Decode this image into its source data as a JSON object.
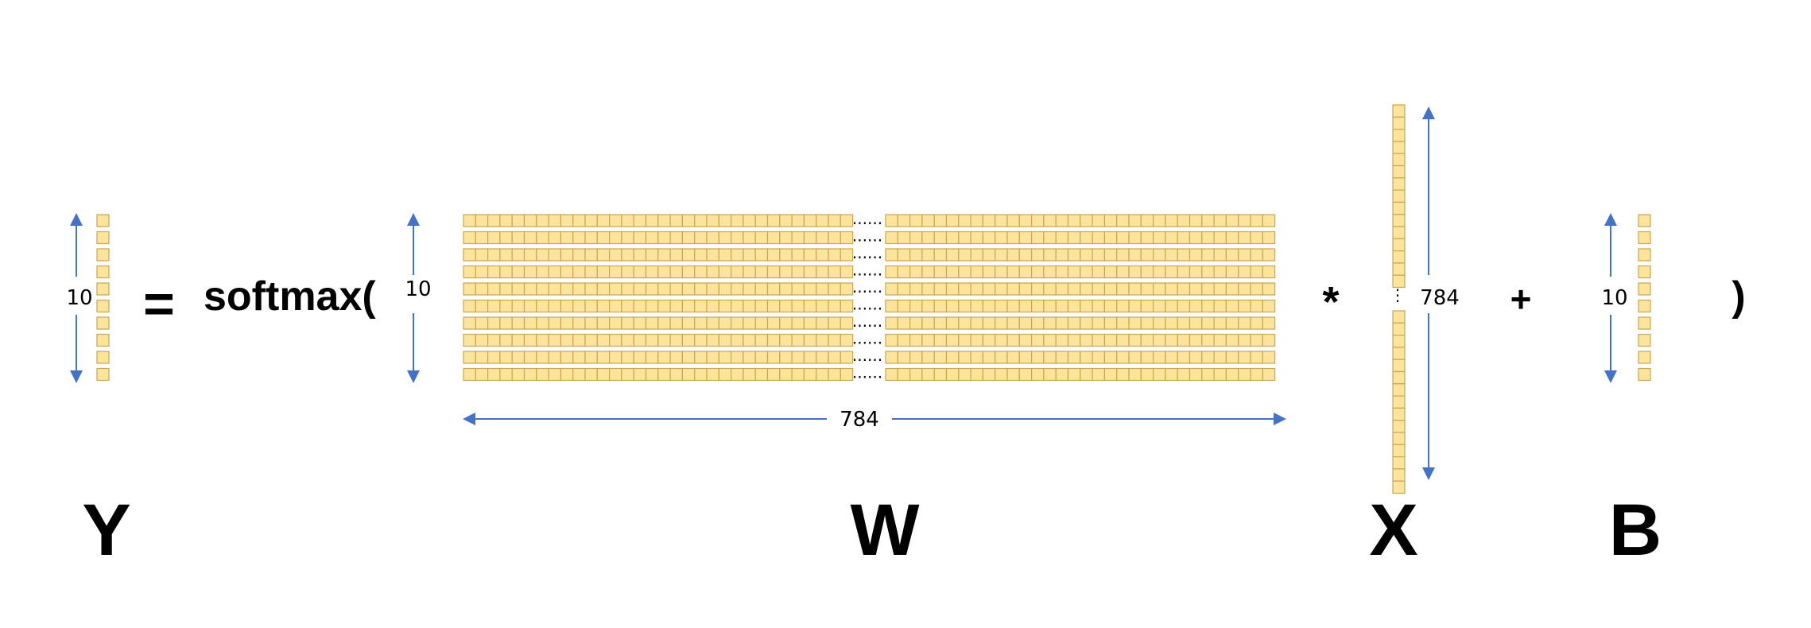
{
  "equation": {
    "equals": "=",
    "function": "softmax(",
    "multiply": "*",
    "plus": "+",
    "close_paren": ")"
  },
  "labels": {
    "y": "Y",
    "w": "W",
    "x": "X",
    "b": "B"
  },
  "dimensions": {
    "y_rows": "10",
    "w_rows": "10",
    "w_cols": "784",
    "x_rows": "784",
    "b_rows": "10"
  },
  "ellipsis": {
    "horizontal": "......",
    "vertical": "⋮"
  },
  "colors": {
    "cell_fill": "#FCE49D",
    "cell_stroke": "#C9A64F",
    "arrow": "#4472C4"
  }
}
